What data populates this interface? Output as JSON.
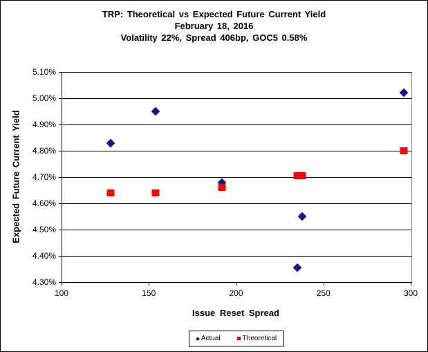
{
  "chart_data": {
    "type": "scatter",
    "title": "TRP: Theoretical vs Expected Future Current Yield",
    "subtitle": "February 18, 2016",
    "subtitle2": "Volatility 22%, Spread 406bp, GOC5 0.58%",
    "xlabel": "Issue Reset Spread",
    "ylabel": "Expected Future Current Yield",
    "xlim": [
      100,
      300
    ],
    "ylim": [
      4.3,
      5.1
    ],
    "x_ticks": [
      "100",
      "150",
      "200",
      "250",
      "300"
    ],
    "y_ticks": [
      "5.10%",
      "5.00%",
      "4.90%",
      "4.80%",
      "4.70%",
      "4.60%",
      "4.50%",
      "4.40%",
      "4.30%"
    ],
    "grid": "horizontal",
    "legend_position": "bottom-center",
    "series": [
      {
        "name": "Actual",
        "marker": "diamond",
        "color": "#16168C",
        "points": [
          [
            128,
            4.83
          ],
          [
            154,
            4.95
          ],
          [
            192,
            4.68
          ],
          [
            235,
            4.355
          ],
          [
            238,
            4.55
          ],
          [
            296,
            5.02
          ]
        ]
      },
      {
        "name": "Theoretical",
        "marker": "square",
        "color": "#FF0000",
        "points": [
          [
            128,
            4.64
          ],
          [
            154,
            4.64
          ],
          [
            192,
            4.66
          ],
          [
            235,
            4.705
          ],
          [
            238,
            4.705
          ],
          [
            296,
            4.8
          ]
        ]
      }
    ]
  }
}
